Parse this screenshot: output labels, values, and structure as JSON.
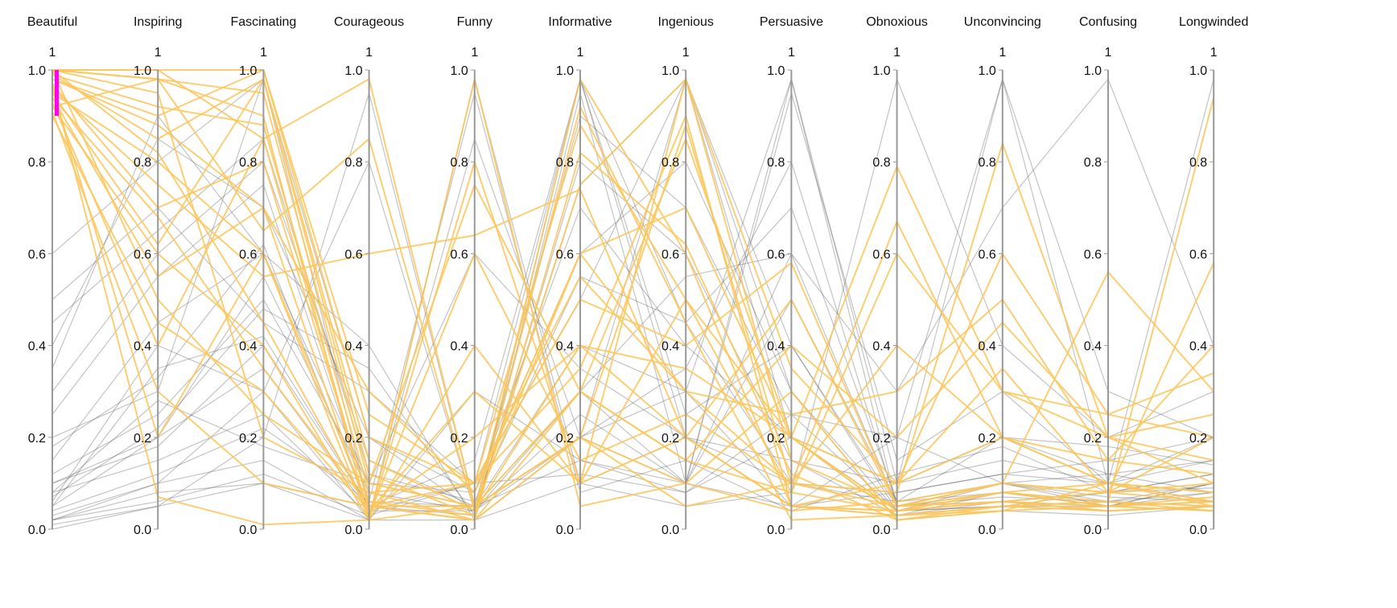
{
  "chart_data": {
    "type": "parallel-coordinates",
    "dimensions": [
      "Beautiful",
      "Inspiring",
      "Fascinating",
      "Courageous",
      "Funny",
      "Informative",
      "Ingenious",
      "Persuasive",
      "Obnoxious",
      "Unconvincing",
      "Confusing",
      "Longwinded"
    ],
    "axis_top_label": "1",
    "ylim": [
      0,
      1
    ],
    "ticks": [
      "0.0",
      "0.2",
      "0.4",
      "0.6",
      "0.8",
      "1.0"
    ],
    "tick_values": [
      0,
      0.2,
      0.4,
      0.6,
      0.8,
      1.0
    ],
    "brush": {
      "dimension": "Beautiful",
      "range": [
        0.9,
        1.0
      ],
      "color": "#ff00ff"
    },
    "colors": {
      "selected": "#fcc65a",
      "context": "#555555",
      "axis": "#999999"
    },
    "context_lines": [
      [
        0.05,
        0.35,
        0.42,
        0.05,
        0.02,
        0.95,
        0.1,
        0.05,
        0.03,
        0.08,
        0.05,
        0.1
      ],
      [
        0.1,
        0.2,
        0.55,
        0.08,
        0.04,
        0.2,
        0.98,
        0.3,
        0.04,
        0.1,
        0.06,
        0.08
      ],
      [
        0.02,
        0.1,
        0.3,
        0.02,
        0.98,
        0.1,
        0.2,
        0.05,
        0.08,
        0.12,
        0.1,
        0.06
      ],
      [
        0.3,
        0.6,
        0.8,
        0.15,
        0.05,
        0.4,
        0.3,
        0.98,
        0.05,
        0.06,
        0.04,
        0.05
      ],
      [
        0.0,
        0.05,
        0.2,
        0.95,
        0.05,
        0.15,
        0.08,
        0.2,
        0.04,
        0.05,
        0.08,
        0.12
      ],
      [
        0.15,
        0.45,
        0.6,
        0.1,
        0.08,
        0.7,
        0.4,
        0.2,
        0.1,
        0.98,
        0.1,
        0.15
      ],
      [
        0.05,
        0.2,
        0.35,
        0.04,
        0.1,
        0.98,
        0.2,
        0.1,
        0.06,
        0.2,
        0.18,
        0.14
      ],
      [
        0.4,
        0.85,
        0.7,
        0.2,
        0.04,
        0.3,
        0.55,
        0.6,
        0.05,
        0.1,
        0.05,
        0.06
      ],
      [
        0.08,
        0.15,
        0.25,
        0.03,
        0.85,
        0.2,
        0.3,
        0.05,
        0.2,
        0.1,
        0.12,
        0.08
      ],
      [
        0.2,
        0.3,
        0.98,
        0.05,
        0.03,
        0.8,
        0.6,
        0.15,
        0.03,
        0.05,
        0.04,
        0.05
      ],
      [
        0.02,
        0.08,
        0.1,
        0.05,
        0.05,
        0.3,
        0.1,
        0.95,
        0.15,
        0.3,
        0.1,
        0.2
      ],
      [
        0.5,
        0.7,
        0.45,
        0.3,
        0.1,
        0.5,
        0.98,
        0.4,
        0.04,
        0.05,
        0.05,
        0.04
      ],
      [
        0.03,
        0.1,
        0.15,
        0.02,
        0.02,
        0.1,
        0.05,
        0.08,
        0.98,
        0.4,
        0.2,
        0.3
      ],
      [
        0.12,
        0.25,
        0.5,
        0.1,
        0.6,
        0.35,
        0.2,
        0.15,
        0.1,
        0.15,
        0.1,
        0.98
      ],
      [
        0.06,
        0.4,
        0.3,
        0.8,
        0.04,
        0.25,
        0.1,
        0.5,
        0.06,
        0.08,
        0.05,
        0.1
      ],
      [
        0.25,
        0.55,
        0.75,
        0.06,
        0.05,
        0.9,
        0.7,
        0.25,
        0.04,
        0.06,
        0.08,
        0.09
      ],
      [
        0.01,
        0.05,
        0.1,
        0.02,
        0.3,
        0.15,
        0.1,
        0.6,
        0.3,
        0.7,
        0.98,
        0.4
      ],
      [
        0.35,
        0.9,
        0.6,
        0.4,
        0.02,
        0.2,
        0.35,
        0.8,
        0.05,
        0.07,
        0.06,
        0.05
      ],
      [
        0.1,
        0.18,
        0.4,
        0.05,
        0.15,
        0.98,
        0.45,
        0.1,
        0.08,
        0.12,
        0.15,
        0.2
      ],
      [
        0.04,
        0.12,
        0.22,
        0.06,
        0.95,
        0.08,
        0.15,
        0.04,
        0.12,
        0.18,
        0.08,
        0.12
      ],
      [
        0.6,
        0.8,
        0.98,
        0.2,
        0.08,
        0.6,
        0.8,
        0.3,
        0.02,
        0.04,
        0.03,
        0.05
      ],
      [
        0.08,
        0.28,
        0.18,
        0.1,
        0.05,
        0.2,
        0.1,
        0.98,
        0.1,
        0.2,
        0.12,
        0.15
      ],
      [
        0.18,
        0.33,
        0.62,
        0.04,
        0.04,
        0.75,
        0.98,
        0.2,
        0.03,
        0.06,
        0.05,
        0.08
      ],
      [
        0.02,
        0.06,
        0.12,
        0.03,
        0.1,
        0.12,
        0.08,
        0.25,
        0.2,
        0.98,
        0.3,
        0.2
      ],
      [
        0.45,
        0.65,
        0.85,
        0.12,
        0.06,
        0.55,
        0.45,
        0.7,
        0.06,
        0.1,
        0.07,
        0.06
      ],
      [
        0.07,
        0.22,
        0.48,
        0.35,
        0.03,
        0.98,
        0.25,
        0.4,
        0.05,
        0.08,
        0.06,
        0.1
      ]
    ],
    "selected_lines": [
      [
        1.0,
        0.98,
        0.95,
        0.1,
        0.05,
        0.6,
        0.3,
        0.1,
        0.05,
        0.08,
        0.1,
        0.06
      ],
      [
        0.95,
        0.8,
        0.6,
        0.05,
        0.02,
        0.3,
        0.85,
        0.2,
        0.03,
        0.05,
        0.06,
        0.05
      ],
      [
        0.98,
        0.9,
        1.0,
        0.2,
        0.1,
        0.88,
        0.5,
        0.08,
        0.04,
        0.06,
        0.08,
        0.1
      ],
      [
        0.92,
        0.6,
        0.4,
        0.02,
        0.8,
        0.1,
        0.2,
        0.05,
        0.1,
        0.2,
        0.15,
        0.12
      ],
      [
        1.0,
        1.0,
        0.85,
        0.98,
        0.05,
        0.2,
        0.1,
        0.3,
        0.02,
        0.04,
        0.05,
        0.04
      ],
      [
        0.97,
        0.7,
        0.8,
        0.06,
        0.03,
        0.75,
        0.98,
        0.15,
        0.05,
        0.1,
        0.08,
        0.06
      ],
      [
        0.9,
        0.45,
        0.3,
        0.04,
        0.2,
        0.4,
        0.35,
        0.2,
        0.79,
        0.3,
        0.25,
        0.2
      ],
      [
        0.99,
        0.85,
        0.98,
        0.15,
        0.04,
        0.98,
        0.6,
        0.05,
        0.03,
        0.05,
        0.04,
        0.05
      ],
      [
        0.94,
        0.55,
        0.7,
        0.03,
        0.6,
        0.15,
        0.25,
        0.1,
        0.08,
        0.84,
        0.2,
        0.1
      ],
      [
        1.0,
        0.95,
        0.2,
        0.08,
        0.1,
        0.5,
        0.4,
        0.58,
        0.05,
        0.1,
        0.56,
        0.3
      ],
      [
        0.96,
        0.75,
        0.55,
        0.6,
        0.64,
        0.74,
        0.2,
        0.05,
        0.04,
        0.08,
        0.06,
        0.94
      ],
      [
        0.93,
        0.4,
        0.85,
        0.05,
        0.02,
        0.2,
        0.88,
        0.1,
        0.67,
        0.2,
        0.1,
        0.08
      ],
      [
        1.0,
        0.98,
        0.9,
        0.02,
        0.98,
        0.05,
        0.1,
        0.04,
        0.06,
        0.1,
        0.08,
        0.58
      ],
      [
        0.91,
        0.3,
        0.1,
        0.05,
        0.05,
        0.3,
        0.15,
        0.4,
        0.2,
        0.45,
        0.2,
        0.15
      ],
      [
        0.98,
        0.88,
        0.7,
        0.3,
        0.08,
        0.6,
        0.7,
        0.2,
        0.04,
        0.06,
        0.05,
        0.07
      ],
      [
        0.95,
        0.62,
        0.98,
        0.12,
        0.03,
        0.92,
        0.45,
        0.02,
        0.03,
        0.04,
        0.1,
        0.05
      ],
      [
        1.0,
        0.82,
        0.45,
        0.04,
        0.3,
        0.1,
        0.98,
        0.35,
        0.1,
        0.6,
        0.25,
        0.34
      ],
      [
        0.97,
        0.07,
        0.01,
        0.02,
        0.05,
        0.2,
        0.05,
        0.1,
        0.4,
        0.2,
        0.1,
        0.08
      ],
      [
        0.92,
        0.98,
        0.65,
        0.85,
        0.04,
        0.4,
        0.2,
        0.5,
        0.05,
        0.06,
        0.04,
        0.05
      ],
      [
        1.0,
        0.5,
        0.25,
        0.1,
        0.75,
        0.3,
        0.15,
        0.08,
        0.6,
        0.3,
        0.2,
        0.25
      ],
      [
        0.99,
        0.92,
        0.88,
        0.08,
        0.02,
        0.82,
        0.62,
        0.12,
        0.02,
        0.05,
        0.06,
        0.04
      ],
      [
        0.94,
        0.68,
        0.35,
        0.05,
        0.1,
        0.55,
        0.3,
        0.25,
        0.3,
        0.5,
        0.15,
        0.4
      ],
      [
        1.0,
        1.0,
        1.0,
        0.25,
        0.1,
        0.35,
        0.9,
        0.05,
        0.04,
        0.08,
        0.05,
        0.06
      ],
      [
        0.96,
        0.2,
        0.6,
        0.02,
        0.4,
        0.1,
        0.5,
        0.2,
        0.1,
        0.35,
        0.08,
        0.2
      ]
    ]
  }
}
